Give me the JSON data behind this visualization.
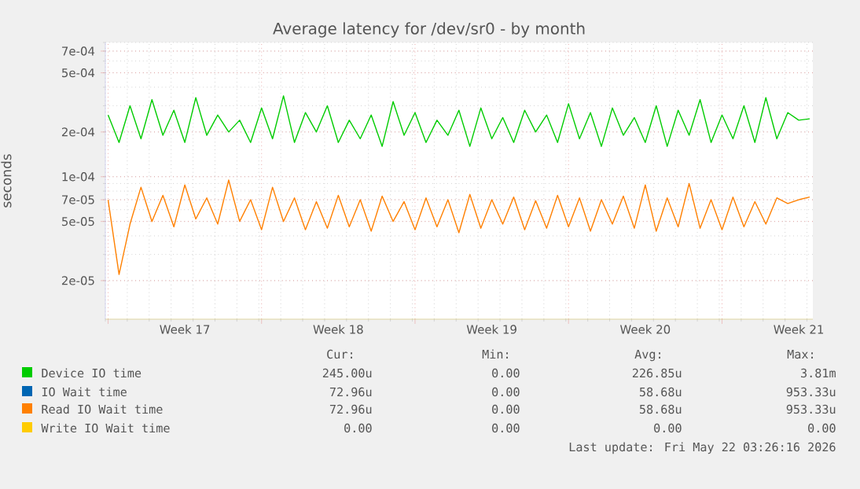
{
  "chart_data": {
    "type": "line",
    "title": "Average latency for /dev/sr0 - by month",
    "ylabel": "seconds",
    "log": true,
    "grid": true,
    "legend": "bottom",
    "xlim": [
      "2026-04-19T21:00",
      "2026-05-22T03:26"
    ],
    "ylim": [
      1.1e-05,
      0.0008
    ],
    "xticks": [
      {
        "value": "2026-04-20T00:00",
        "label": null
      },
      {
        "value": "2026-04-23T12:00",
        "label": "Week 17"
      },
      {
        "value": "2026-04-27T00:00",
        "label": null
      },
      {
        "value": "2026-04-30T12:00",
        "label": "Week 18"
      },
      {
        "value": "2026-05-04T00:00",
        "label": null
      },
      {
        "value": "2026-05-07T12:00",
        "label": "Week 19"
      },
      {
        "value": "2026-05-11T00:00",
        "label": null
      },
      {
        "value": "2026-05-14T12:00",
        "label": "Week 20"
      },
      {
        "value": "2026-05-18T00:00",
        "label": null
      },
      {
        "value": "2026-05-21T12:00",
        "label": "Week 21"
      }
    ],
    "yticks": [
      {
        "value": 2e-05,
        "label": "2e-05"
      },
      {
        "value": 5e-05,
        "label": "5e-05"
      },
      {
        "value": 7e-05,
        "label": "7e-05"
      },
      {
        "value": 0.0001,
        "label": "1e-04"
      },
      {
        "value": 0.0002,
        "label": "2e-04"
      },
      {
        "value": 0.0005,
        "label": "5e-04"
      },
      {
        "value": 0.0007,
        "label": "7e-04"
      }
    ],
    "x": [
      "2026-04-20T00:00",
      "2026-04-20T12:00",
      "2026-04-21T00:00",
      "2026-04-21T12:00",
      "2026-04-22T00:00",
      "2026-04-22T12:00",
      "2026-04-23T00:00",
      "2026-04-23T12:00",
      "2026-04-24T00:00",
      "2026-04-24T12:00",
      "2026-04-25T00:00",
      "2026-04-25T12:00",
      "2026-04-26T00:00",
      "2026-04-26T12:00",
      "2026-04-27T00:00",
      "2026-04-27T12:00",
      "2026-04-28T00:00",
      "2026-04-28T12:00",
      "2026-04-29T00:00",
      "2026-04-29T12:00",
      "2026-04-30T00:00",
      "2026-04-30T12:00",
      "2026-05-01T00:00",
      "2026-05-01T12:00",
      "2026-05-02T00:00",
      "2026-05-02T12:00",
      "2026-05-03T00:00",
      "2026-05-03T12:00",
      "2026-05-04T00:00",
      "2026-05-04T12:00",
      "2026-05-05T00:00",
      "2026-05-05T12:00",
      "2026-05-06T00:00",
      "2026-05-06T12:00",
      "2026-05-07T00:00",
      "2026-05-07T12:00",
      "2026-05-08T00:00",
      "2026-05-08T12:00",
      "2026-05-09T00:00",
      "2026-05-09T12:00",
      "2026-05-10T00:00",
      "2026-05-10T12:00",
      "2026-05-11T00:00",
      "2026-05-11T12:00",
      "2026-05-12T00:00",
      "2026-05-12T12:00",
      "2026-05-13T00:00",
      "2026-05-13T12:00",
      "2026-05-14T00:00",
      "2026-05-14T12:00",
      "2026-05-15T00:00",
      "2026-05-15T12:00",
      "2026-05-16T00:00",
      "2026-05-16T12:00",
      "2026-05-17T00:00",
      "2026-05-17T12:00",
      "2026-05-18T00:00",
      "2026-05-18T12:00",
      "2026-05-19T00:00",
      "2026-05-19T12:00",
      "2026-05-20T00:00",
      "2026-05-20T12:00",
      "2026-05-21T00:00",
      "2026-05-21T12:00",
      "2026-05-22T00:00"
    ],
    "series": [
      {
        "name": "Device IO time",
        "color": "#00cc00",
        "values": [
          0.00026,
          0.00017,
          0.0003,
          0.00018,
          0.00033,
          0.00019,
          0.00028,
          0.00017,
          0.00034,
          0.00019,
          0.00026,
          0.0002,
          0.00024,
          0.00017,
          0.00029,
          0.00018,
          0.00035,
          0.00017,
          0.00027,
          0.0002,
          0.0003,
          0.00017,
          0.00024,
          0.00018,
          0.00026,
          0.00016,
          0.00032,
          0.00019,
          0.00027,
          0.00017,
          0.00024,
          0.00019,
          0.00028,
          0.00016,
          0.00029,
          0.00018,
          0.00025,
          0.00017,
          0.00028,
          0.0002,
          0.00026,
          0.00017,
          0.00031,
          0.00018,
          0.00027,
          0.00016,
          0.00029,
          0.00019,
          0.00025,
          0.00017,
          0.0003,
          0.00016,
          0.00028,
          0.00019,
          0.00033,
          0.00017,
          0.00026,
          0.00018,
          0.0003,
          0.00017,
          0.00034,
          0.00018,
          0.00027,
          0.00024,
          0.000245
        ]
      },
      {
        "name": "IO Wait time",
        "color": "#0066b3",
        "values": [
          null,
          null,
          null,
          null,
          null,
          null,
          null,
          null,
          null,
          null,
          null,
          null,
          null,
          null,
          null,
          null,
          null,
          null,
          null,
          null,
          null,
          null,
          null,
          null,
          null,
          null,
          null,
          null,
          null,
          null,
          null,
          null,
          null,
          null,
          null,
          null,
          null,
          null,
          null,
          null,
          null,
          null,
          null,
          null,
          null,
          null,
          null,
          null,
          null,
          null,
          null,
          null,
          null,
          null,
          null,
          null,
          null,
          null,
          null,
          null,
          null,
          null,
          null,
          null,
          null
        ]
      },
      {
        "name": "Read IO Wait time",
        "color": "#ff8000",
        "values": [
          7e-05,
          2.2e-05,
          4.8e-05,
          8.5e-05,
          5e-05,
          7.5e-05,
          4.6e-05,
          8.8e-05,
          5.2e-05,
          7.2e-05,
          4.8e-05,
          9.5e-05,
          5e-05,
          7e-05,
          4.4e-05,
          8.5e-05,
          5e-05,
          7.2e-05,
          4.4e-05,
          6.8e-05,
          4.5e-05,
          7.5e-05,
          4.6e-05,
          7e-05,
          4.3e-05,
          7.4e-05,
          5e-05,
          6.8e-05,
          4.4e-05,
          7.2e-05,
          4.6e-05,
          7e-05,
          4.2e-05,
          7.6e-05,
          4.5e-05,
          7e-05,
          4.8e-05,
          7.3e-05,
          4.4e-05,
          6.9e-05,
          4.5e-05,
          7.5e-05,
          4.6e-05,
          7.2e-05,
          4.3e-05,
          7e-05,
          4.8e-05,
          7.4e-05,
          4.5e-05,
          8.8e-05,
          4.3e-05,
          7.2e-05,
          4.6e-05,
          9e-05,
          4.5e-05,
          7e-05,
          4.4e-05,
          7.3e-05,
          4.6e-05,
          6.8e-05,
          4.8e-05,
          7.2e-05,
          6.6e-05,
          7e-05,
          7.3e-05
        ]
      },
      {
        "name": "Write IO Wait time",
        "color": "#ffcc00",
        "values": [
          null,
          null,
          null,
          null,
          null,
          null,
          null,
          null,
          null,
          null,
          null,
          null,
          null,
          null,
          null,
          null,
          null,
          null,
          null,
          null,
          null,
          null,
          null,
          null,
          null,
          null,
          null,
          null,
          null,
          null,
          null,
          null,
          null,
          null,
          null,
          null,
          null,
          null,
          null,
          null,
          null,
          null,
          null,
          null,
          null,
          null,
          null,
          null,
          null,
          null,
          null,
          null,
          null,
          null,
          null,
          null,
          null,
          null,
          null,
          null,
          null,
          null,
          null,
          null,
          null
        ]
      }
    ],
    "annotations": [
      "Cur:",
      "Min:",
      "Avg:",
      "Max:",
      "245.00u",
      "0.00",
      "226.85u",
      "3.81m",
      "72.96u",
      "0.00",
      "58.68u",
      "953.33u",
      "72.96u",
      "0.00",
      "58.68u",
      "953.33u",
      "0.00",
      "0.00",
      "0.00",
      "0.00",
      "Last update: Fri May 22 03:26:16 2026"
    ]
  }
}
